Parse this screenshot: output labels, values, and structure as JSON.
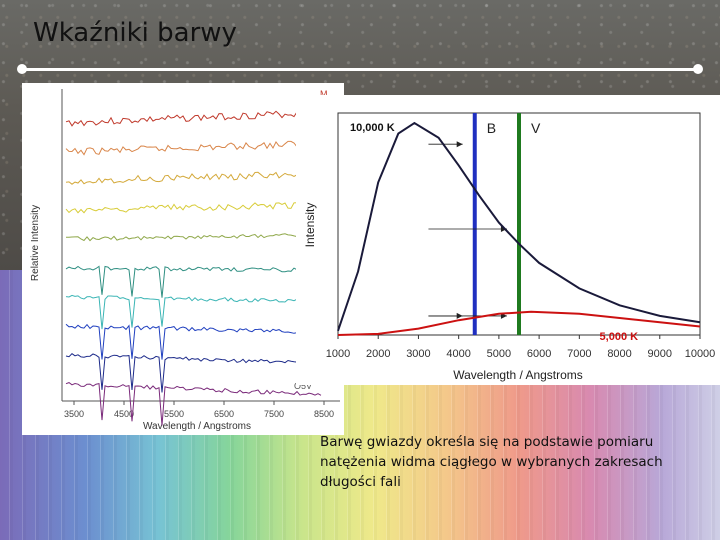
{
  "slide": {
    "title": "Wkaźniki barwy",
    "caption": "Barwę gwiazdy określa się na podstawie pomiaru natężenia widma ciągłego w wybranych zakresach długości fali"
  },
  "spectra_panel": {
    "ylabel": "Relative Intensity",
    "xlabel": "Wavelength / Angstroms",
    "x_ticks": [
      "3500",
      "4500",
      "5500",
      "6500",
      "7500",
      "8500"
    ],
    "top_label": "M",
    "bottom_label": "O5V",
    "series_colors": [
      "#c0392b",
      "#d9864a",
      "#d4a93a",
      "#d8cc38",
      "#8fa84a",
      "#2f8f82",
      "#3bb5b5",
      "#1f3fbf",
      "#1c2a8a",
      "#7a2a7a"
    ]
  },
  "chart_data": {
    "type": "line",
    "xlabel": "Wavelength / Angstroms",
    "ylabel": "Intensity",
    "xlim": [
      1000,
      10000
    ],
    "x_ticks": [
      1000,
      2000,
      3000,
      4000,
      5000,
      6000,
      7000,
      8000,
      9000,
      10000
    ],
    "series": [
      {
        "name": "10,000 K",
        "color": "#1a1a3a",
        "x": [
          1000,
          1500,
          2000,
          2500,
          2900,
          3500,
          4000,
          4500,
          5000,
          5500,
          6000,
          7000,
          8000,
          9000,
          10000
        ],
        "y": [
          0.02,
          0.3,
          0.72,
          0.95,
          1.0,
          0.93,
          0.8,
          0.66,
          0.53,
          0.43,
          0.34,
          0.22,
          0.14,
          0.09,
          0.06
        ]
      },
      {
        "name": "5,000 K",
        "color": "#cc1111",
        "x": [
          1000,
          2000,
          3000,
          4000,
          5000,
          5800,
          7000,
          8000,
          9000,
          10000
        ],
        "y": [
          0.0,
          0.005,
          0.03,
          0.07,
          0.1,
          0.11,
          0.1,
          0.08,
          0.06,
          0.04
        ]
      }
    ],
    "filter_bands": [
      {
        "label": "B",
        "x": 4400,
        "color": "#1f2fc0"
      },
      {
        "label": "V",
        "x": 5500,
        "color": "#1f7a1f"
      }
    ]
  }
}
